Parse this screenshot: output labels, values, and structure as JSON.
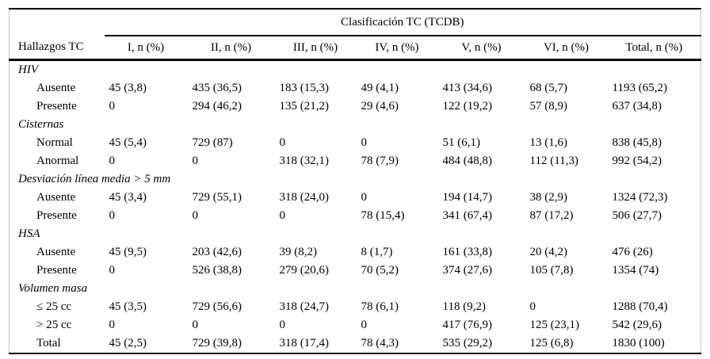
{
  "table": {
    "spanner": "Clasificación TC (TCDB)",
    "row_header": "Hallazgos TC",
    "columns": [
      "I, n (%)",
      "II, n (%)",
      "III, n (%)",
      "IV, n (%)",
      "V, n (%)",
      "VI, n (%)",
      "Total, n (%)"
    ],
    "sections": [
      {
        "label": "HIV",
        "rows": [
          {
            "label": "Ausente",
            "values": [
              "45 (3,8)",
              "435 (36,5)",
              "183 (15,3)",
              "49 (4,1)",
              "413 (34,6)",
              "68 (5,7)",
              "1193 (65,2)"
            ]
          },
          {
            "label": "Presente",
            "values": [
              "0",
              "294 (46,2)",
              "135 (21,2)",
              "29 (4,6)",
              "122 (19,2)",
              "57 (8,9)",
              "637 (34,8)"
            ]
          }
        ]
      },
      {
        "label": "Cisternas",
        "rows": [
          {
            "label": "Normal",
            "values": [
              "45 (5,4)",
              "729 (87)",
              "0",
              "0",
              "51 (6,1)",
              "13 (1,6)",
              "838 (45,8)"
            ]
          },
          {
            "label": "Anormal",
            "values": [
              "0",
              "0",
              "318 (32,1)",
              "78 (7,9)",
              "484 (48,8)",
              "112 (11,3)",
              "992 (54,2)"
            ]
          }
        ]
      },
      {
        "label": "Desviación línea media > 5 mm",
        "rows": [
          {
            "label": "Ausente",
            "values": [
              "45 (3,4)",
              "729 (55,1)",
              "318 (24,0)",
              "0",
              "194 (14,7)",
              "38 (2,9)",
              "1324 (72,3)"
            ]
          },
          {
            "label": "Presente",
            "values": [
              "0",
              "0",
              "0",
              "78 (15,4)",
              "341 (67,4)",
              "87 (17,2)",
              "506 (27,7)"
            ]
          }
        ]
      },
      {
        "label": "HSA",
        "rows": [
          {
            "label": "Ausente",
            "values": [
              "45 (9,5)",
              "203 (42,6)",
              "39 (8,2)",
              "8 (1,7)",
              "161 (33,8)",
              "20 (4,2)",
              "476 (26)"
            ]
          },
          {
            "label": "Presente",
            "values": [
              "0",
              "526 (38,8)",
              "279 (20,6)",
              "70 (5,2)",
              "374 (27,6)",
              "105 (7,8)",
              "1354 (74)"
            ]
          }
        ]
      },
      {
        "label": "Volumen masa",
        "rows": [
          {
            "label": "≤ 25 cc",
            "values": [
              "45 (3,5)",
              "729 (56,6)",
              "318 (24,7)",
              "78 (6,1)",
              "118 (9,2)",
              "0",
              "1288 (70,4)"
            ]
          },
          {
            "label": "> 25 cc",
            "values": [
              "0",
              "0",
              "0",
              "0",
              "417 (76,9)",
              "125 (23,1)",
              "542 (29,6)"
            ]
          },
          {
            "label": "Total",
            "values": [
              "45 (2,5)",
              "729 (39,8)",
              "318 (17,4)",
              "78 (4,3)",
              "535 (29,2)",
              "125 (6,8)",
              "1830 (100)"
            ]
          }
        ]
      }
    ]
  },
  "colors": {
    "text": "#000000",
    "rule": "#000000",
    "frame": "#c8c8c8",
    "background": "#ffffff"
  }
}
